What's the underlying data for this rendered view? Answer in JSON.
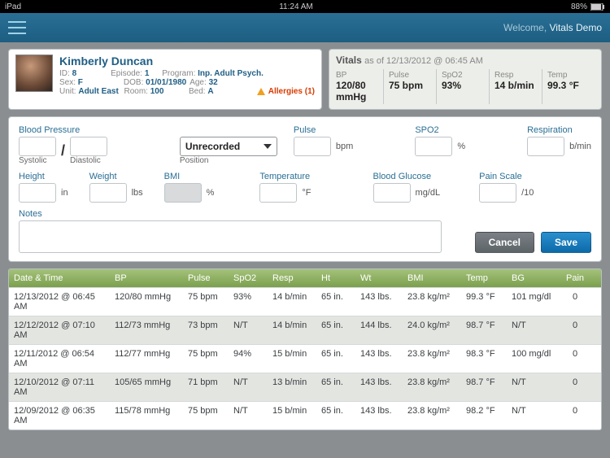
{
  "statusbar": {
    "device": "iPad",
    "time": "11:24 AM",
    "battery": "88%"
  },
  "navbar": {
    "welcome_label": "Welcome,",
    "user_name": "Vitals Demo"
  },
  "patient": {
    "name": "Kimberly Duncan",
    "id_lbl": "ID:",
    "id": "8",
    "episode_lbl": "Episode:",
    "episode": "1",
    "program_lbl": "Program:",
    "program": "Inp. Adult Psych.",
    "sex_lbl": "Sex:",
    "sex": "F",
    "dob_lbl": "DOB:",
    "dob": "01/01/1980",
    "age_lbl": "Age:",
    "age": "32",
    "unit_lbl": "Unit:",
    "unit": "Adult East",
    "room_lbl": "Room:",
    "room": "100",
    "bed_lbl": "Bed:",
    "bed": "A",
    "allergies_label": "Allergies (1)"
  },
  "vitals_summary": {
    "title": "Vitals",
    "asof": "as of 12/13/2012 @ 06:45 AM",
    "bp_lbl": "BP",
    "bp": "120/80 mmHg",
    "pulse_lbl": "Pulse",
    "pulse": "75 bpm",
    "spo2_lbl": "SpO2",
    "spo2": "93%",
    "resp_lbl": "Resp",
    "resp": "14 b/min",
    "temp_lbl": "Temp",
    "temp": "99.3 °F"
  },
  "form": {
    "bp_label": "Blood Pressure",
    "systolic_lbl": "Systolic",
    "diastolic_lbl": "Diastolic",
    "slash": "/",
    "position_lbl": "Position",
    "position_value": "Unrecorded",
    "pulse_label": "Pulse",
    "pulse_unit": "bpm",
    "spo2_label": "SPO2",
    "spo2_unit": "%",
    "resp_label": "Respiration",
    "resp_unit": "b/min",
    "height_label": "Height",
    "height_unit": "in",
    "weight_label": "Weight",
    "weight_unit": "lbs",
    "bmi_label": "BMI",
    "bmi_unit": "%",
    "temp_label": "Temperature",
    "temp_unit": "°F",
    "bg_label": "Blood Glucose",
    "bg_unit": "mg/dL",
    "pain_label": "Pain Scale",
    "pain_unit": "/10",
    "notes_label": "Notes",
    "cancel": "Cancel",
    "save": "Save"
  },
  "table": {
    "headers": {
      "dt": "Date & Time",
      "bp": "BP",
      "pulse": "Pulse",
      "spo2": "SpO2",
      "resp": "Resp",
      "ht": "Ht",
      "wt": "Wt",
      "bmi": "BMI",
      "temp": "Temp",
      "bg": "BG",
      "pain": "Pain"
    },
    "rows": [
      {
        "dt": "12/13/2012 @ 06:45 AM",
        "bp": "120/80 mmHg",
        "pulse": "75 bpm",
        "spo2": "93%",
        "resp": "14 b/min",
        "ht": "65 in.",
        "wt": "143 lbs.",
        "bmi": "23.8 kg/m²",
        "temp": "99.3 °F",
        "bg": "101 mg/dl",
        "pain": "0"
      },
      {
        "dt": "12/12/2012 @ 07:10 AM",
        "bp": "112/73 mmHg",
        "pulse": "73 bpm",
        "spo2": "N/T",
        "resp": "14 b/min",
        "ht": "65 in.",
        "wt": "144 lbs.",
        "bmi": "24.0 kg/m²",
        "temp": "98.7 °F",
        "bg": "N/T",
        "pain": "0"
      },
      {
        "dt": "12/11/2012 @ 06:54 AM",
        "bp": "112/77 mmHg",
        "pulse": "75 bpm",
        "spo2": "94%",
        "resp": "15 b/min",
        "ht": "65 in.",
        "wt": "143 lbs.",
        "bmi": "23.8 kg/m²",
        "temp": "98.3 °F",
        "bg": "100 mg/dl",
        "pain": "0"
      },
      {
        "dt": "12/10/2012 @ 07:11 AM",
        "bp": "105/65 mmHg",
        "pulse": "71 bpm",
        "spo2": "N/T",
        "resp": "13 b/min",
        "ht": "65 in.",
        "wt": "143 lbs.",
        "bmi": "23.8 kg/m²",
        "temp": "98.7 °F",
        "bg": "N/T",
        "pain": "0"
      },
      {
        "dt": "12/09/2012 @ 06:35 AM",
        "bp": "115/78 mmHg",
        "pulse": "75 bpm",
        "spo2": "N/T",
        "resp": "15 b/min",
        "ht": "65 in.",
        "wt": "143 lbs.",
        "bmi": "23.8 kg/m²",
        "temp": "98.2 °F",
        "bg": "N/T",
        "pain": "0"
      }
    ]
  },
  "colors": {
    "header_bg": "#7ba04e",
    "accent": "#1d5e82",
    "save": "#0d6aa9",
    "cancel": "#5d6468",
    "allergy": "#d93a00"
  }
}
